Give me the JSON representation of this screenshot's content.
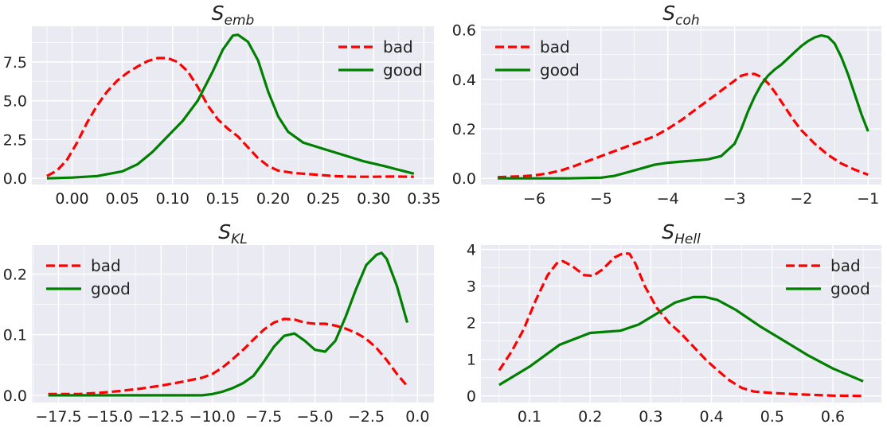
{
  "chart_data": [
    {
      "type": "line",
      "title": "S",
      "title_subscript": "emb",
      "xlim": [
        -0.04,
        0.36
      ],
      "ylim": [
        -0.4,
        9.8
      ],
      "xticks": [
        0.0,
        0.05,
        0.1,
        0.15,
        0.2,
        0.25,
        0.3,
        0.35
      ],
      "xtick_labels": [
        "0.00",
        "0.05",
        "0.10",
        "0.15",
        "0.20",
        "0.25",
        "0.30",
        "0.35"
      ],
      "yticks": [
        0.0,
        2.5,
        5.0,
        7.5
      ],
      "ytick_labels": [
        "0.0",
        "2.5",
        "5.0",
        "7.5"
      ],
      "legend_position": "top-right",
      "series": [
        {
          "name": "bad",
          "color": "#ff0000",
          "dash": "dashed",
          "x": [
            -0.025,
            -0.015,
            -0.005,
            0.005,
            0.015,
            0.025,
            0.035,
            0.045,
            0.055,
            0.065,
            0.075,
            0.085,
            0.095,
            0.105,
            0.115,
            0.125,
            0.135,
            0.145,
            0.155,
            0.165,
            0.175,
            0.185,
            0.195,
            0.205,
            0.22,
            0.24,
            0.26,
            0.28,
            0.3,
            0.32,
            0.34
          ],
          "y": [
            0.15,
            0.5,
            1.2,
            2.3,
            3.6,
            4.7,
            5.6,
            6.3,
            6.8,
            7.2,
            7.55,
            7.75,
            7.75,
            7.5,
            6.9,
            5.9,
            4.7,
            3.8,
            3.2,
            2.7,
            2.0,
            1.3,
            0.8,
            0.5,
            0.35,
            0.25,
            0.15,
            0.1,
            0.1,
            0.12,
            0.1
          ]
        },
        {
          "name": "good",
          "color": "#008000",
          "dash": "solid",
          "x": [
            -0.025,
            0.0,
            0.025,
            0.05,
            0.065,
            0.08,
            0.095,
            0.11,
            0.125,
            0.14,
            0.15,
            0.16,
            0.165,
            0.175,
            0.185,
            0.195,
            0.205,
            0.215,
            0.23,
            0.25,
            0.27,
            0.29,
            0.31,
            0.325,
            0.34
          ],
          "y": [
            0.0,
            0.05,
            0.15,
            0.45,
            0.9,
            1.7,
            2.7,
            3.7,
            5.0,
            6.9,
            8.3,
            9.2,
            9.25,
            8.8,
            7.6,
            5.6,
            4.0,
            3.0,
            2.3,
            1.9,
            1.5,
            1.1,
            0.8,
            0.55,
            0.3
          ]
        }
      ]
    },
    {
      "type": "line",
      "title": "S",
      "title_subscript": "coh",
      "xlim": [
        -6.8,
        -0.8
      ],
      "ylim": [
        -0.025,
        0.615
      ],
      "xticks": [
        -6,
        -5,
        -4,
        -3,
        -2,
        -1
      ],
      "xtick_labels": [
        "−6",
        "−5",
        "−4",
        "−3",
        "−2",
        "−1"
      ],
      "yticks": [
        0.0,
        0.2,
        0.4,
        0.6
      ],
      "ytick_labels": [
        "0.0",
        "0.2",
        "0.4",
        "0.6"
      ],
      "legend_position": "top-left",
      "series": [
        {
          "name": "bad",
          "color": "#ff0000",
          "dash": "dashed",
          "x": [
            -6.55,
            -6.2,
            -6.0,
            -5.8,
            -5.6,
            -5.4,
            -5.2,
            -5.0,
            -4.8,
            -4.6,
            -4.4,
            -4.2,
            -4.0,
            -3.8,
            -3.6,
            -3.4,
            -3.2,
            -3.0,
            -2.9,
            -2.8,
            -2.7,
            -2.6,
            -2.5,
            -2.4,
            -2.3,
            -2.2,
            -2.1,
            -2.0,
            -1.8,
            -1.6,
            -1.4,
            -1.2,
            -1.0
          ],
          "y": [
            0.005,
            0.008,
            0.012,
            0.02,
            0.032,
            0.05,
            0.07,
            0.09,
            0.11,
            0.13,
            0.15,
            0.17,
            0.2,
            0.235,
            0.275,
            0.315,
            0.355,
            0.395,
            0.415,
            0.422,
            0.422,
            0.41,
            0.385,
            0.35,
            0.31,
            0.27,
            0.23,
            0.195,
            0.14,
            0.095,
            0.06,
            0.035,
            0.015
          ]
        },
        {
          "name": "good",
          "color": "#008000",
          "dash": "solid",
          "x": [
            -6.55,
            -6.0,
            -5.5,
            -5.0,
            -4.8,
            -4.6,
            -4.4,
            -4.2,
            -4.0,
            -3.8,
            -3.6,
            -3.4,
            -3.2,
            -3.0,
            -2.9,
            -2.8,
            -2.7,
            -2.6,
            -2.5,
            -2.4,
            -2.3,
            -2.2,
            -2.1,
            -2.0,
            -1.9,
            -1.8,
            -1.7,
            -1.6,
            -1.5,
            -1.4,
            -1.3,
            -1.2,
            -1.1,
            -1.0
          ],
          "y": [
            0.0,
            0.0,
            0.0,
            0.003,
            0.01,
            0.025,
            0.04,
            0.055,
            0.063,
            0.068,
            0.072,
            0.077,
            0.09,
            0.14,
            0.2,
            0.27,
            0.33,
            0.38,
            0.415,
            0.44,
            0.46,
            0.485,
            0.51,
            0.535,
            0.555,
            0.57,
            0.578,
            0.572,
            0.545,
            0.49,
            0.42,
            0.34,
            0.26,
            0.19
          ]
        }
      ]
    },
    {
      "type": "line",
      "title": "S",
      "title_subscript": "KL",
      "xlim": [
        -18.8,
        0.8
      ],
      "ylim": [
        -0.012,
        0.248
      ],
      "xticks": [
        -17.5,
        -15.0,
        -12.5,
        -10.0,
        -7.5,
        -5.0,
        -2.5,
        0.0
      ],
      "xtick_labels": [
        "−17.5",
        "−15.0",
        "−12.5",
        "−10.0",
        "−7.5",
        "−5.0",
        "−2.5",
        "0.0"
      ],
      "yticks": [
        0.0,
        0.1,
        0.2
      ],
      "ytick_labels": [
        "0.0",
        "0.1",
        "0.2"
      ],
      "legend_position": "top-left",
      "series": [
        {
          "name": "bad",
          "color": "#ff0000",
          "dash": "dashed",
          "x": [
            -18.0,
            -16.5,
            -15.5,
            -14.5,
            -13.5,
            -12.5,
            -11.5,
            -10.5,
            -10.0,
            -9.5,
            -9.0,
            -8.5,
            -8.0,
            -7.5,
            -7.0,
            -6.5,
            -6.0,
            -5.5,
            -5.0,
            -4.5,
            -4.0,
            -3.5,
            -3.0,
            -2.5,
            -2.0,
            -1.5,
            -1.0,
            -0.5
          ],
          "y": [
            0.002,
            0.002,
            0.004,
            0.007,
            0.011,
            0.016,
            0.022,
            0.029,
            0.035,
            0.046,
            0.06,
            0.075,
            0.092,
            0.108,
            0.12,
            0.126,
            0.125,
            0.12,
            0.118,
            0.118,
            0.115,
            0.11,
            0.103,
            0.093,
            0.078,
            0.058,
            0.035,
            0.015
          ]
        },
        {
          "name": "good",
          "color": "#008000",
          "dash": "solid",
          "x": [
            -18.0,
            -15.0,
            -12.0,
            -10.5,
            -10.0,
            -9.5,
            -9.0,
            -8.5,
            -8.0,
            -7.5,
            -7.0,
            -6.5,
            -6.0,
            -5.5,
            -5.0,
            -4.5,
            -4.0,
            -3.5,
            -3.0,
            -2.5,
            -2.0,
            -1.75,
            -1.5,
            -1.0,
            -0.5
          ],
          "y": [
            0.0,
            0.0,
            0.0,
            0.0,
            0.002,
            0.006,
            0.012,
            0.02,
            0.032,
            0.055,
            0.08,
            0.098,
            0.102,
            0.09,
            0.075,
            0.072,
            0.09,
            0.13,
            0.175,
            0.215,
            0.232,
            0.235,
            0.225,
            0.18,
            0.12
          ]
        }
      ]
    },
    {
      "type": "line",
      "title": "S",
      "title_subscript": "Hell",
      "xlim": [
        0.02,
        0.68
      ],
      "ylim": [
        -0.18,
        4.12
      ],
      "xticks": [
        0.1,
        0.2,
        0.3,
        0.4,
        0.5,
        0.6
      ],
      "xtick_labels": [
        "0.1",
        "0.2",
        "0.3",
        "0.4",
        "0.5",
        "0.6"
      ],
      "yticks": [
        0,
        1,
        2,
        3,
        4
      ],
      "ytick_labels": [
        "0",
        "1",
        "2",
        "3",
        "4"
      ],
      "legend_position": "top-right",
      "series": [
        {
          "name": "bad",
          "color": "#ff0000",
          "dash": "dashed",
          "x": [
            0.05,
            0.07,
            0.09,
            0.11,
            0.13,
            0.145,
            0.155,
            0.17,
            0.19,
            0.205,
            0.22,
            0.24,
            0.255,
            0.265,
            0.275,
            0.29,
            0.31,
            0.33,
            0.35,
            0.37,
            0.39,
            0.41,
            0.43,
            0.45,
            0.47,
            0.5,
            0.55,
            0.6,
            0.65
          ],
          "y": [
            0.7,
            1.2,
            1.8,
            2.6,
            3.3,
            3.62,
            3.68,
            3.55,
            3.3,
            3.28,
            3.45,
            3.78,
            3.9,
            3.88,
            3.6,
            3.0,
            2.4,
            2.0,
            1.7,
            1.35,
            1.0,
            0.7,
            0.42,
            0.22,
            0.12,
            0.08,
            0.04,
            0.01,
            0.0
          ]
        },
        {
          "name": "good",
          "color": "#008000",
          "dash": "solid",
          "x": [
            0.05,
            0.1,
            0.15,
            0.2,
            0.25,
            0.28,
            0.31,
            0.34,
            0.37,
            0.39,
            0.41,
            0.44,
            0.48,
            0.52,
            0.56,
            0.6,
            0.65
          ],
          "y": [
            0.3,
            0.8,
            1.4,
            1.72,
            1.78,
            1.95,
            2.25,
            2.55,
            2.7,
            2.7,
            2.62,
            2.35,
            1.9,
            1.5,
            1.1,
            0.75,
            0.4
          ]
        }
      ]
    }
  ]
}
